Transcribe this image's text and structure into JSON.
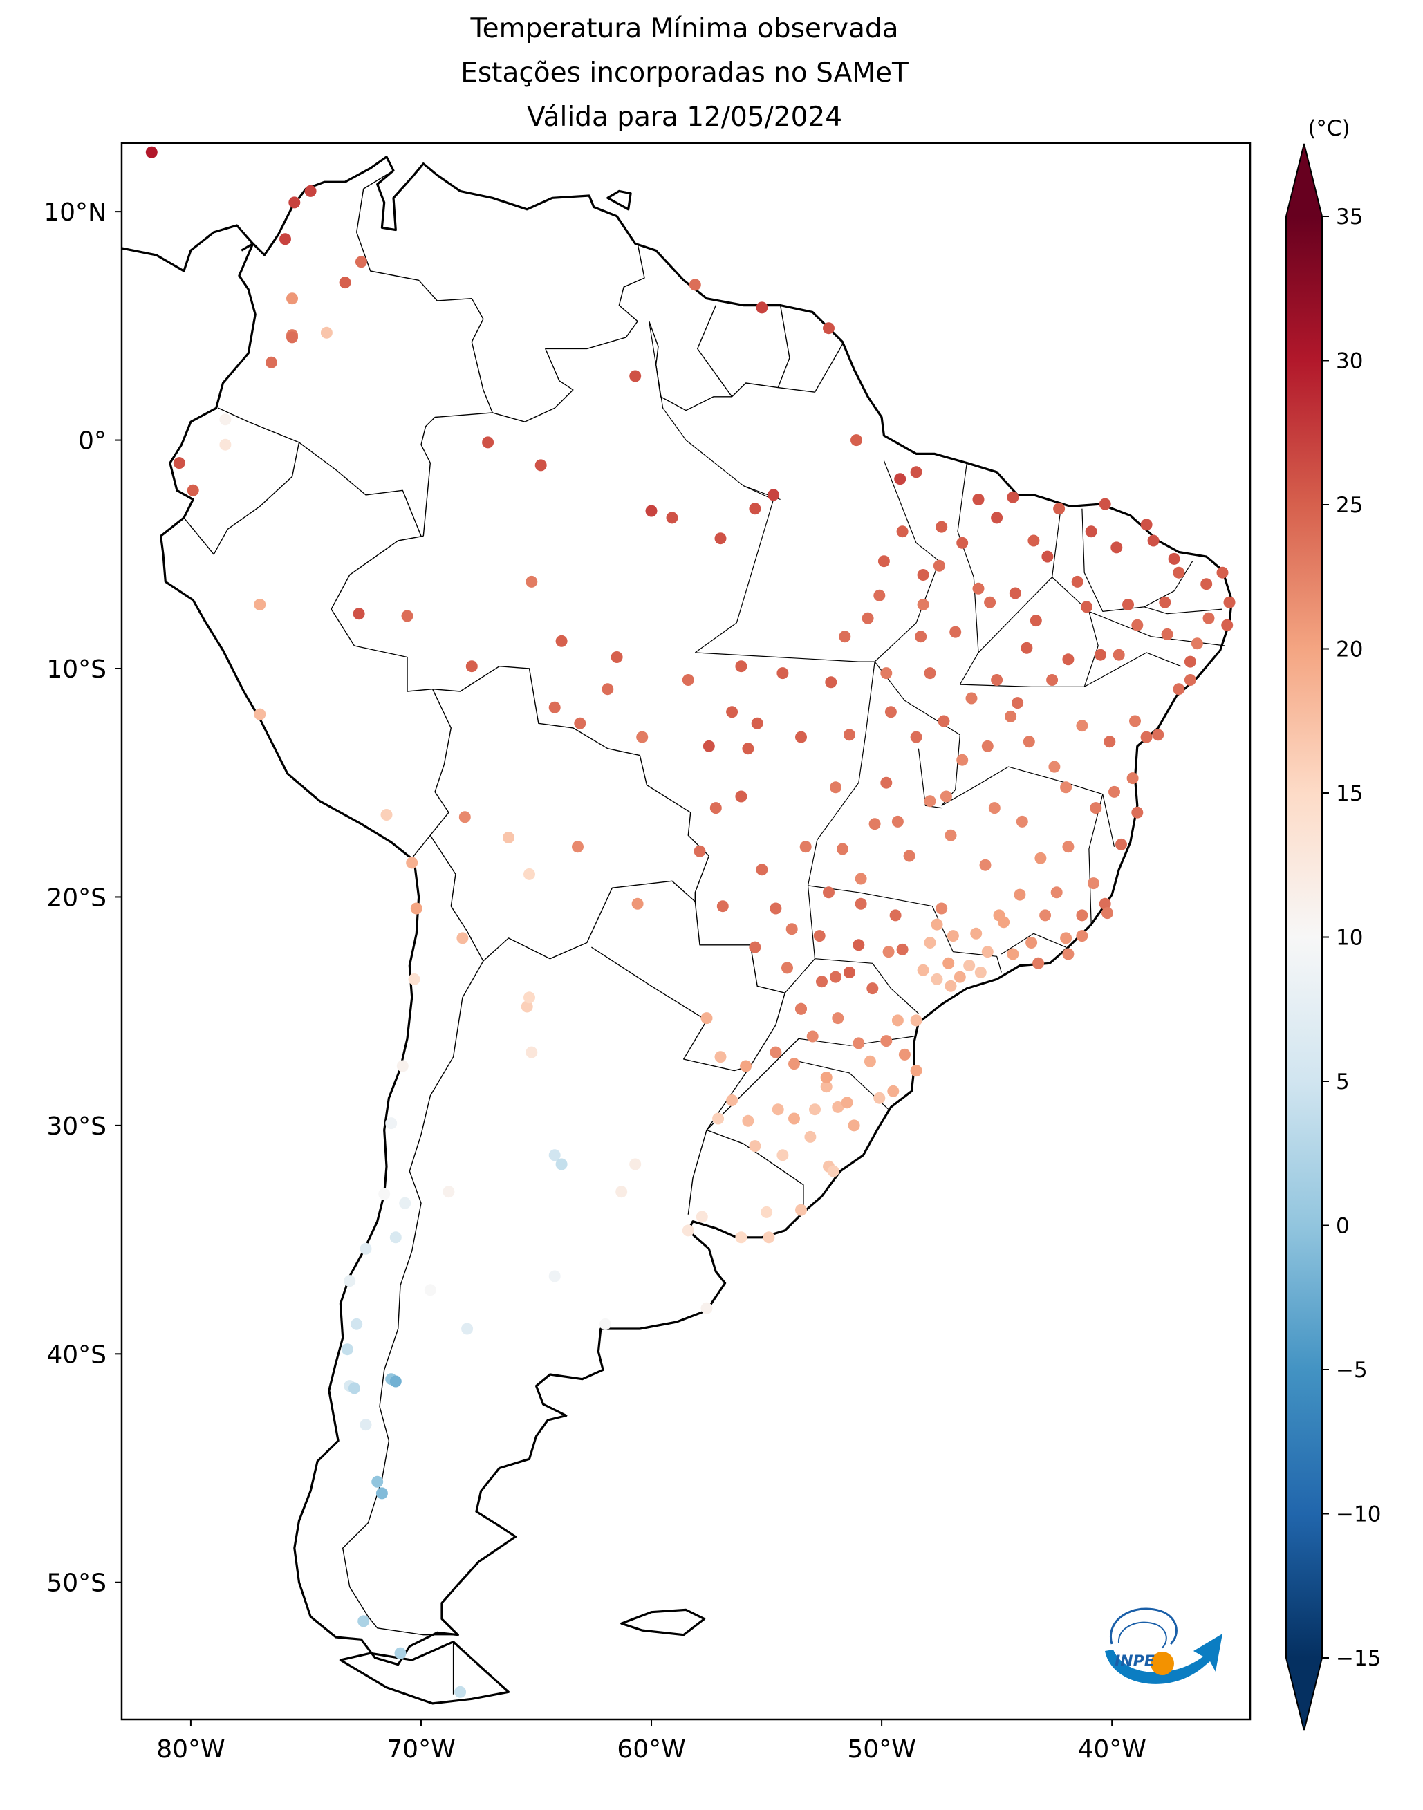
{
  "title": {
    "line1": "Temperatura Mínima observada",
    "line2": "Estações incorporadas no SAMeT",
    "line3": "Válida para 12/05/2024"
  },
  "x_axis": {
    "ticks": [
      {
        "lon": -80,
        "label": "80°W"
      },
      {
        "lon": -70,
        "label": "70°W"
      },
      {
        "lon": -60,
        "label": "60°W"
      },
      {
        "lon": -50,
        "label": "50°W"
      },
      {
        "lon": -40,
        "label": "40°W"
      }
    ]
  },
  "y_axis": {
    "ticks": [
      {
        "lat": 10,
        "label": "10°N"
      },
      {
        "lat": 0,
        "label": "0°"
      },
      {
        "lat": -10,
        "label": "10°S"
      },
      {
        "lat": -20,
        "label": "20°S"
      },
      {
        "lat": -30,
        "label": "30°S"
      },
      {
        "lat": -40,
        "label": "40°S"
      },
      {
        "lat": -50,
        "label": "50°S"
      }
    ]
  },
  "map_extent": {
    "lon_min": -83,
    "lon_max": -34,
    "lat_min": -56,
    "lat_max": 13
  },
  "colorbar": {
    "unit": "(°C)",
    "min": -15,
    "max": 35,
    "colormap": "RdBu_r",
    "extend": "both",
    "ticks": [
      {
        "value": 35,
        "label": "35"
      },
      {
        "value": 30,
        "label": "30"
      },
      {
        "value": 25,
        "label": "25"
      },
      {
        "value": 20,
        "label": "20"
      },
      {
        "value": 15,
        "label": "15"
      },
      {
        "value": 10,
        "label": "10"
      },
      {
        "value": 5,
        "label": "5"
      },
      {
        "value": 0,
        "label": "0"
      },
      {
        "value": -5,
        "label": "−5"
      },
      {
        "value": -10,
        "label": "−10"
      },
      {
        "value": -15,
        "label": "−15"
      }
    ],
    "colors": [
      "#053061",
      "#2166ac",
      "#4393c3",
      "#92c5de",
      "#d1e5f0",
      "#f7f7f7",
      "#fddbc7",
      "#f4a582",
      "#d6604d",
      "#b2182b",
      "#67001f"
    ]
  },
  "logo": {
    "text": "INPE",
    "icon": "inpe-logo-icon"
  },
  "chart_data": {
    "type": "scatter",
    "title": "Temperatura Mínima observada / Estações incorporadas no SAMeT / Válida para 12/05/2024",
    "xlabel": "",
    "ylabel": "",
    "xlim": [
      -83,
      -34
    ],
    "ylim": [
      -56,
      13
    ],
    "value_unit": "°C",
    "point_format": "[longitude, latitude, temperature]",
    "stations": [
      [
        -81.7,
        12.6,
        30
      ],
      [
        -75.5,
        10.4,
        27
      ],
      [
        -74.8,
        10.9,
        27
      ],
      [
        -75.9,
        8.8,
        27
      ],
      [
        -73.3,
        6.9,
        25
      ],
      [
        -72.6,
        7.8,
        24
      ],
      [
        -75.6,
        6.2,
        21
      ],
      [
        -75.6,
        4.6,
        23
      ],
      [
        -74.1,
        4.7,
        17
      ],
      [
        -75.6,
        4.5,
        24
      ],
      [
        -76.5,
        3.4,
        24
      ],
      [
        -78.5,
        0.9,
        11
      ],
      [
        -80.5,
        -1.0,
        26
      ],
      [
        -79.9,
        -2.2,
        25
      ],
      [
        -78.5,
        -0.2,
        13
      ],
      [
        -77.0,
        -7.2,
        19
      ],
      [
        -77.0,
        -12.0,
        18
      ],
      [
        -71.5,
        -16.4,
        16
      ],
      [
        -70.4,
        -18.5,
        19
      ],
      [
        -70.2,
        -20.5,
        20
      ],
      [
        -70.3,
        -23.6,
        14
      ],
      [
        -70.8,
        -27.4,
        11
      ],
      [
        -71.3,
        -29.9,
        9
      ],
      [
        -71.6,
        -33.0,
        10
      ],
      [
        -70.7,
        -33.4,
        8
      ],
      [
        -71.1,
        -34.9,
        6
      ],
      [
        -72.4,
        -35.4,
        7
      ],
      [
        -73.1,
        -36.8,
        8
      ],
      [
        -72.8,
        -38.7,
        5
      ],
      [
        -73.2,
        -39.8,
        4
      ],
      [
        -73.1,
        -41.4,
        6
      ],
      [
        -72.9,
        -41.5,
        3
      ],
      [
        -72.4,
        -43.1,
        7
      ],
      [
        -71.9,
        -45.6,
        0
      ],
      [
        -71.7,
        -46.1,
        -1
      ],
      [
        -72.5,
        -51.7,
        2
      ],
      [
        -70.9,
        -53.1,
        2
      ],
      [
        -68.3,
        -54.8,
        4
      ],
      [
        -71.3,
        -41.1,
        0
      ],
      [
        -71.1,
        -41.2,
        -2
      ],
      [
        -68.0,
        -38.9,
        7
      ],
      [
        -69.6,
        -37.2,
        10
      ],
      [
        -68.8,
        -32.9,
        11
      ],
      [
        -65.4,
        -24.8,
        16
      ],
      [
        -65.3,
        -24.4,
        15
      ],
      [
        -65.2,
        -26.8,
        13
      ],
      [
        -64.2,
        -31.3,
        5
      ],
      [
        -63.9,
        -31.7,
        4
      ],
      [
        -64.2,
        -36.6,
        9
      ],
      [
        -62.0,
        -38.7,
        10
      ],
      [
        -61.3,
        -32.9,
        12
      ],
      [
        -60.7,
        -31.7,
        12
      ],
      [
        -58.4,
        -34.6,
        13
      ],
      [
        -57.6,
        -38.0,
        11
      ],
      [
        -68.1,
        -16.5,
        22
      ],
      [
        -68.2,
        -21.8,
        18
      ],
      [
        -65.3,
        -19.0,
        15
      ],
      [
        -66.2,
        -17.4,
        17
      ],
      [
        -63.2,
        -17.8,
        22
      ],
      [
        -60.6,
        -20.3,
        21
      ],
      [
        -57.6,
        -25.3,
        19
      ],
      [
        -57.0,
        -27.0,
        18
      ],
      [
        -55.9,
        -27.4,
        20
      ],
      [
        -56.1,
        -34.9,
        15
      ],
      [
        -54.9,
        -34.9,
        16
      ],
      [
        -53.5,
        -33.7,
        17
      ],
      [
        -48.5,
        -1.4,
        26
      ],
      [
        -49.2,
        -1.7,
        27
      ],
      [
        -51.1,
        0.0,
        25
      ],
      [
        -60.0,
        -3.1,
        27
      ],
      [
        -59.1,
        -3.4,
        26
      ],
      [
        -55.5,
        -3.0,
        26
      ],
      [
        -54.7,
        -2.4,
        27
      ],
      [
        -57.0,
        -4.3,
        26
      ],
      [
        -60.7,
        2.8,
        26
      ],
      [
        -58.1,
        6.8,
        24
      ],
      [
        -55.2,
        5.8,
        27
      ],
      [
        -52.3,
        4.9,
        26
      ],
      [
        -67.1,
        -0.1,
        26
      ],
      [
        -64.8,
        -1.1,
        26
      ],
      [
        -63.9,
        -8.8,
        25
      ],
      [
        -67.8,
        -9.9,
        25
      ],
      [
        -70.6,
        -7.7,
        24
      ],
      [
        -72.7,
        -7.6,
        26
      ],
      [
        -65.2,
        -6.2,
        23
      ],
      [
        -61.9,
        -10.9,
        24
      ],
      [
        -63.1,
        -12.4,
        24
      ],
      [
        -56.1,
        -9.9,
        25
      ],
      [
        -55.4,
        -12.4,
        25
      ],
      [
        -52.2,
        -10.6,
        25
      ],
      [
        -51.4,
        -12.9,
        24
      ],
      [
        -49.8,
        -10.2,
        23
      ],
      [
        -47.9,
        -10.2,
        24
      ],
      [
        -48.2,
        -7.2,
        23
      ],
      [
        -47.5,
        -5.5,
        24
      ],
      [
        -45.3,
        -7.1,
        24
      ],
      [
        -44.3,
        -2.5,
        26
      ],
      [
        -42.8,
        -5.1,
        26
      ],
      [
        -41.5,
        -6.2,
        25
      ],
      [
        -38.5,
        -3.7,
        26
      ],
      [
        -39.3,
        -7.2,
        25
      ],
      [
        -37.1,
        -5.8,
        25
      ],
      [
        -35.2,
        -5.8,
        25
      ],
      [
        -34.9,
        -7.1,
        25
      ],
      [
        -35.0,
        -8.1,
        25
      ],
      [
        -36.6,
        -9.7,
        25
      ],
      [
        -37.1,
        -10.9,
        24
      ],
      [
        -38.5,
        -13.0,
        24
      ],
      [
        -39.1,
        -14.8,
        23
      ],
      [
        -40.3,
        -20.3,
        24
      ],
      [
        -42.4,
        -19.8,
        22
      ],
      [
        -43.2,
        -22.9,
        23
      ],
      [
        -44.0,
        -19.9,
        21
      ],
      [
        -45.9,
        -21.6,
        19
      ],
      [
        -46.6,
        -23.5,
        19
      ],
      [
        -47.1,
        -22.9,
        20
      ],
      [
        -48.5,
        -25.4,
        18
      ],
      [
        -49.3,
        -25.4,
        19
      ],
      [
        -48.5,
        -27.6,
        20
      ],
      [
        -49.0,
        -26.9,
        21
      ],
      [
        -51.2,
        -30.0,
        19
      ],
      [
        -52.4,
        -28.3,
        18
      ],
      [
        -53.8,
        -29.7,
        19
      ],
      [
        -55.5,
        -30.9,
        17
      ],
      [
        -52.3,
        -31.8,
        17
      ],
      [
        -54.6,
        -26.8,
        22
      ],
      [
        -53.5,
        -24.9,
        24
      ],
      [
        -51.4,
        -23.3,
        25
      ],
      [
        -49.1,
        -22.3,
        24
      ],
      [
        -47.9,
        -15.8,
        22
      ],
      [
        -49.3,
        -16.7,
        23
      ],
      [
        -51.7,
        -17.9,
        23
      ],
      [
        -54.6,
        -20.5,
        24
      ],
      [
        -56.1,
        -15.6,
        25
      ],
      [
        -55.5,
        -22.2,
        24
      ],
      [
        -51.0,
        -22.1,
        25
      ],
      [
        -49.4,
        -20.8,
        24
      ],
      [
        -47.4,
        -20.5,
        22
      ],
      [
        -45.5,
        -18.6,
        22
      ],
      [
        -43.9,
        -16.7,
        22
      ],
      [
        -44.4,
        -12.1,
        23
      ],
      [
        -41.3,
        -12.5,
        22
      ],
      [
        -40.5,
        -9.4,
        25
      ],
      [
        -43.7,
        -9.1,
        25
      ],
      [
        -45.0,
        -10.5,
        24
      ],
      [
        -48.5,
        -13.0,
        24
      ],
      [
        -46.5,
        -14.0,
        22
      ],
      [
        -39.0,
        -12.3,
        23
      ],
      [
        -36.6,
        -10.5,
        24
      ],
      [
        -37.7,
        -7.1,
        25
      ],
      [
        -40.9,
        -4.0,
        26
      ],
      [
        -45.8,
        -2.6,
        26
      ],
      [
        -47.4,
        -3.8,
        25
      ],
      [
        -49.9,
        -5.3,
        25
      ],
      [
        -50.6,
        -7.8,
        24
      ],
      [
        -52.0,
        -15.2,
        23
      ],
      [
        -53.3,
        -17.8,
        23
      ],
      [
        -52.7,
        -21.7,
        24
      ],
      [
        -50.4,
        -24.0,
        24
      ],
      [
        -51.9,
        -25.3,
        22
      ],
      [
        -53.0,
        -26.1,
        22
      ],
      [
        -50.5,
        -27.2,
        19
      ],
      [
        -51.9,
        -29.2,
        18
      ],
      [
        -50.1,
        -28.8,
        17
      ],
      [
        -53.1,
        -30.5,
        17
      ],
      [
        -55.8,
        -29.8,
        18
      ],
      [
        -57.1,
        -29.7,
        16
      ],
      [
        -54.3,
        -31.3,
        16
      ],
      [
        -52.1,
        -32.0,
        16
      ],
      [
        -47.0,
        -23.9,
        18
      ],
      [
        -47.6,
        -23.6,
        17
      ],
      [
        -46.2,
        -23.0,
        17
      ],
      [
        -45.4,
        -22.4,
        18
      ],
      [
        -44.3,
        -22.5,
        20
      ],
      [
        -42.0,
        -21.8,
        21
      ],
      [
        -41.3,
        -21.7,
        22
      ],
      [
        -40.8,
        -19.4,
        22
      ],
      [
        -41.9,
        -17.8,
        22
      ],
      [
        -40.7,
        -16.1,
        23
      ],
      [
        -39.6,
        -17.7,
        24
      ],
      [
        -39.9,
        -15.4,
        23
      ],
      [
        -42.5,
        -14.3,
        22
      ],
      [
        -43.6,
        -13.2,
        23
      ],
      [
        -46.1,
        -11.3,
        23
      ],
      [
        -47.3,
        -12.3,
        24
      ],
      [
        -48.3,
        -8.6,
        24
      ],
      [
        -48.2,
        -5.9,
        25
      ],
      [
        -46.5,
        -4.5,
        25
      ],
      [
        -43.4,
        -4.4,
        25
      ],
      [
        -41.1,
        -7.3,
        25
      ],
      [
        -38.9,
        -8.1,
        24
      ],
      [
        -36.3,
        -8.9,
        23
      ],
      [
        -37.3,
        -5.2,
        26
      ],
      [
        -39.8,
        -4.7,
        26
      ],
      [
        -44.2,
        -6.7,
        25
      ],
      [
        -46.8,
        -8.4,
        24
      ],
      [
        -49.6,
        -11.9,
        24
      ],
      [
        -53.5,
        -13.0,
        25
      ],
      [
        -55.8,
        -13.5,
        25
      ],
      [
        -57.5,
        -13.4,
        26
      ],
      [
        -58.4,
        -10.5,
        24
      ],
      [
        -60.4,
        -13.0,
        23
      ],
      [
        -61.5,
        -9.5,
        25
      ],
      [
        -64.2,
        -11.7,
        24
      ],
      [
        -57.9,
        -18.0,
        24
      ],
      [
        -56.9,
        -20.4,
        24
      ],
      [
        -54.1,
        -23.1,
        23
      ],
      [
        -52.6,
        -23.7,
        24
      ],
      [
        -50.9,
        -20.3,
        24
      ],
      [
        -48.8,
        -18.2,
        23
      ],
      [
        -47.0,
        -17.3,
        22
      ],
      [
        -45.1,
        -16.1,
        22
      ],
      [
        -43.1,
        -18.3,
        21
      ],
      [
        -42.9,
        -20.8,
        22
      ],
      [
        -44.9,
        -20.8,
        20
      ],
      [
        -46.9,
        -21.7,
        19
      ],
      [
        -48.2,
        -23.2,
        18
      ],
      [
        -49.7,
        -22.4,
        22
      ],
      [
        -52.0,
        -23.5,
        24
      ],
      [
        -53.5,
        -24.9,
        23
      ],
      [
        -53.8,
        -27.3,
        21
      ],
      [
        -52.4,
        -27.9,
        20
      ],
      [
        -51.0,
        -26.4,
        22
      ],
      [
        -49.8,
        -26.3,
        22
      ],
      [
        -49.5,
        -28.5,
        19
      ],
      [
        -51.5,
        -29.0,
        19
      ],
      [
        -52.9,
        -29.3,
        17
      ],
      [
        -54.5,
        -29.3,
        18
      ],
      [
        -56.5,
        -28.9,
        18
      ],
      [
        -55.0,
        -33.8,
        15
      ],
      [
        -57.8,
        -34.0,
        13
      ],
      [
        -47.6,
        -21.2,
        19
      ],
      [
        -47.9,
        -22.0,
        18
      ],
      [
        -45.7,
        -23.3,
        17
      ],
      [
        -44.7,
        -21.1,
        20
      ],
      [
        -43.5,
        -22.0,
        21
      ],
      [
        -41.9,
        -22.5,
        22
      ],
      [
        -41.3,
        -20.8,
        23
      ],
      [
        -40.2,
        -20.7,
        23
      ],
      [
        -42.0,
        -15.2,
        22
      ],
      [
        -38.0,
        -12.9,
        24
      ],
      [
        -38.9,
        -16.3,
        24
      ],
      [
        -40.1,
        -13.2,
        24
      ],
      [
        -42.6,
        -10.5,
        24
      ],
      [
        -44.1,
        -11.5,
        24
      ],
      [
        -45.4,
        -13.4,
        23
      ],
      [
        -47.2,
        -15.6,
        22
      ],
      [
        -49.8,
        -15.0,
        24
      ],
      [
        -50.3,
        -16.8,
        23
      ],
      [
        -50.9,
        -19.2,
        22
      ],
      [
        -52.3,
        -19.8,
        24
      ],
      [
        -53.9,
        -21.4,
        23
      ],
      [
        -55.2,
        -18.8,
        24
      ],
      [
        -57.2,
        -16.1,
        24
      ],
      [
        -56.5,
        -11.9,
        25
      ],
      [
        -54.3,
        -10.2,
        25
      ],
      [
        -51.6,
        -8.6,
        24
      ],
      [
        -50.1,
        -6.8,
        24
      ],
      [
        -49.1,
        -4.0,
        25
      ],
      [
        -45.0,
        -3.4,
        26
      ],
      [
        -42.3,
        -3.0,
        25
      ],
      [
        -40.3,
        -2.8,
        26
      ],
      [
        -38.2,
        -4.4,
        26
      ],
      [
        -35.9,
        -6.3,
        25
      ],
      [
        -35.8,
        -7.8,
        24
      ],
      [
        -37.6,
        -8.5,
        24
      ],
      [
        -39.7,
        -9.4,
        24
      ],
      [
        -41.9,
        -9.6,
        25
      ],
      [
        -43.3,
        -7.9,
        25
      ],
      [
        -45.8,
        -6.5,
        24
      ]
    ]
  }
}
